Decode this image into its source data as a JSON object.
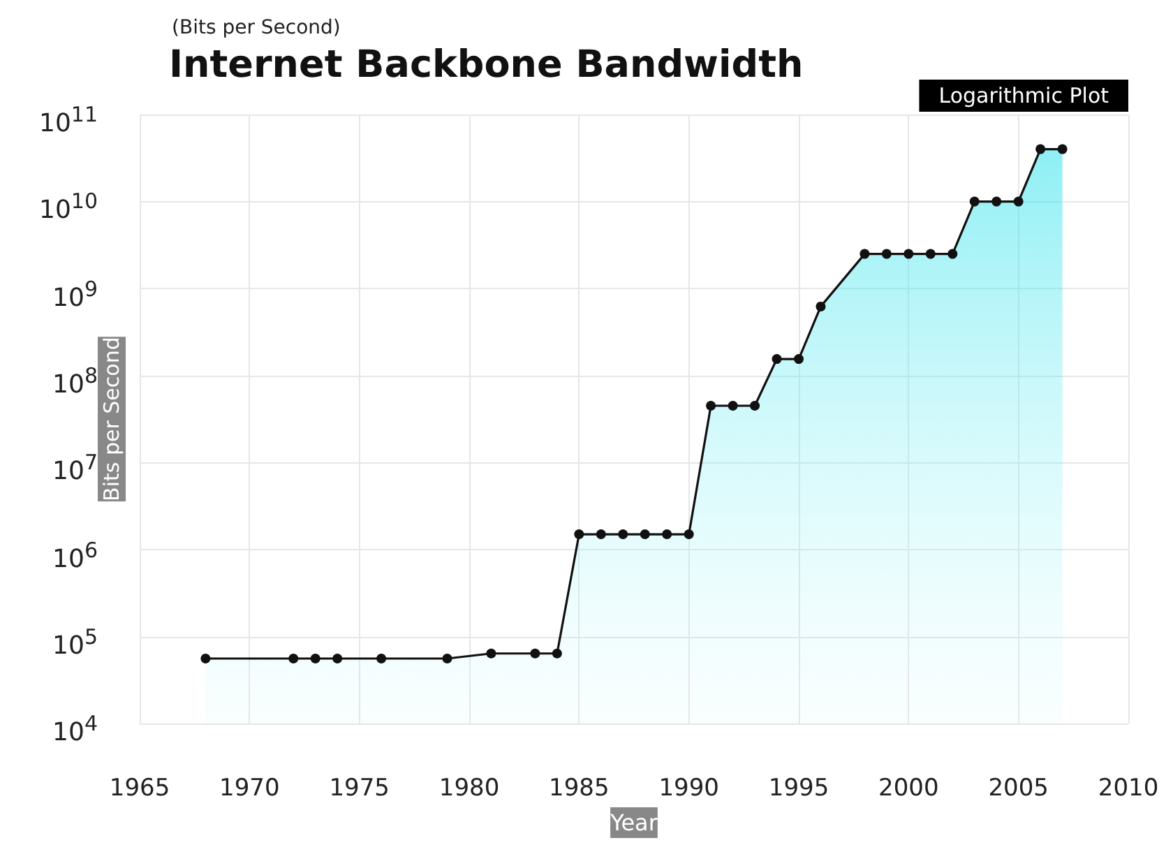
{
  "chart_data": {
    "type": "area",
    "title": "Internet Backbone Bandwidth",
    "subtitle": "(Bits per Second)",
    "xlabel": "Year",
    "ylabel": "Bits per Second",
    "annotations": [
      "Logarithmic Plot"
    ],
    "x": [
      1968,
      1972,
      1973,
      1974,
      1976,
      1979,
      1981,
      1983,
      1984,
      1985,
      1986,
      1987,
      1988,
      1989,
      1990,
      1991,
      1992,
      1993,
      1994,
      1995,
      1996,
      1998,
      1999,
      2000,
      2001,
      2002,
      2003,
      2004,
      2005,
      2006,
      2007
    ],
    "series": [
      {
        "color": "#111111",
        "values": [
          56000,
          56000,
          56000,
          56000,
          56000,
          56000,
          64000,
          64000,
          64000,
          1500000,
          1500000,
          1500000,
          1500000,
          1500000,
          1500000,
          45000000,
          45000000,
          45000000,
          155000000,
          155000000,
          622000000,
          2500000000,
          2500000000,
          2500000000,
          2500000000,
          2500000000,
          10000000000,
          10000000000,
          10000000000,
          40000000000,
          40000000000
        ]
      }
    ],
    "xlim": [
      1965,
      2010
    ],
    "xticks": [
      1965,
      1970,
      1975,
      1980,
      1985,
      1990,
      1995,
      2000,
      2005,
      2010
    ],
    "ylim": [
      10000,
      100000000000
    ],
    "yticks": [
      {
        "value": 10000,
        "label": "10$^{4}$"
      },
      {
        "value": 100000,
        "label": "10$^{5}$"
      },
      {
        "value": 1000000,
        "label": "10$^{6}$"
      },
      {
        "value": 10000000,
        "label": "10$^{7}$"
      },
      {
        "value": 100000000,
        "label": "10$^{8}$"
      },
      {
        "value": 1000000000,
        "label": "10$^{9}$"
      },
      {
        "value": 10000000000,
        "label": "10$^{10}$"
      },
      {
        "value": 100000000000,
        "label": "10$^{11}$"
      }
    ],
    "log": "y",
    "grid": true,
    "marker": "circle",
    "line_style": "solid"
  }
}
